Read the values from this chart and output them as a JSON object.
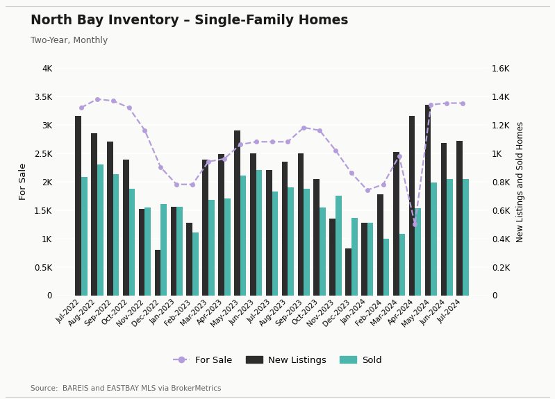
{
  "title": "North Bay Inventory – Single-Family Homes",
  "subtitle": "Two-Year, Monthly",
  "source": "Source:  BAREIS and EASTBAY MLS via BrokerMetrics",
  "months": [
    "Jul-2022",
    "Aug-2022",
    "Sep-2022",
    "Oct-2022",
    "Nov-2022",
    "Dec-2022",
    "Jan-2023",
    "Feb-2023",
    "Mar-2023",
    "Apr-2023",
    "May-2023",
    "Jun-2023",
    "Jul-2023",
    "Aug-2023",
    "Sep-2023",
    "Oct-2023",
    "Nov-2023",
    "Dec-2023",
    "Jan-2024",
    "Feb-2024",
    "Mar-2024",
    "Apr-2024",
    "May-2024",
    "Jun-2024",
    "Jul-2024"
  ],
  "for_sale": [
    3300,
    3450,
    3420,
    3300,
    2900,
    2250,
    1950,
    1950,
    2350,
    2400,
    2650,
    2700,
    2700,
    2700,
    2950,
    2900,
    2550,
    2150,
    1850,
    1950,
    2450,
    1250,
    3350,
    3380,
    3380
  ],
  "new_listings": [
    3150,
    2850,
    2700,
    2380,
    1520,
    800,
    1550,
    1280,
    2380,
    2480,
    2900,
    2500,
    2200,
    2350,
    2500,
    2050,
    1350,
    820,
    1280,
    1780,
    2520,
    3150,
    3350,
    2680,
    2720
  ],
  "sold": [
    2080,
    2300,
    2130,
    1870,
    1540,
    1600,
    1550,
    1100,
    1680,
    1700,
    2100,
    2200,
    1820,
    1900,
    1870,
    1540,
    1750,
    1360,
    1270,
    1000,
    1080,
    1530,
    1980,
    2050,
    2050
  ],
  "for_sale_color": "#b39ddb",
  "new_listings_color": "#2d2d2d",
  "sold_color": "#4db6ac",
  "left_ylim": [
    0,
    4000
  ],
  "right_ylim": [
    0,
    1600
  ],
  "background_color": "#fafaf8",
  "bar_width": 0.38
}
